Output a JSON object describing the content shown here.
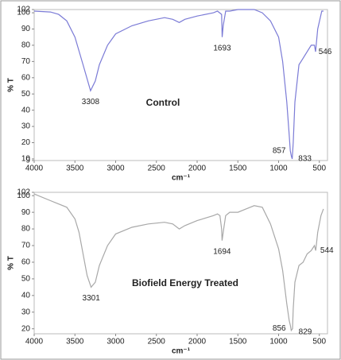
{
  "chart_data": [
    {
      "type": "line",
      "title": "Control",
      "x_label": "cm⁻¹",
      "y_label": "% T",
      "color": "#7b7bd6",
      "x": [
        4000,
        3800,
        3700,
        3600,
        3500,
        3400,
        3308,
        3250,
        3200,
        3100,
        3000,
        2800,
        2600,
        2400,
        2300,
        2220,
        2150,
        2000,
        1800,
        1750,
        1700,
        1693,
        1680,
        1650,
        1600,
        1500,
        1400,
        1300,
        1200,
        1100,
        1000,
        950,
        900,
        870,
        857,
        845,
        833,
        820,
        800,
        750,
        700,
        650,
        600,
        560,
        546,
        520,
        470,
        450
      ],
      "values": [
        101,
        100.5,
        99,
        95,
        85,
        68,
        52,
        58,
        68,
        80,
        87,
        92,
        95,
        97,
        96,
        94,
        96,
        98,
        100,
        101,
        99,
        85,
        92,
        101,
        101,
        102,
        102,
        102,
        100,
        95,
        85,
        70,
        45,
        25,
        15,
        12,
        10,
        20,
        45,
        68,
        72,
        76,
        80,
        80,
        76,
        90,
        101,
        101
      ],
      "peaks": [
        3308,
        1693,
        857,
        833,
        546
      ],
      "xlim": [
        4000,
        400
      ],
      "xticks": [
        4000,
        3500,
        3000,
        2500,
        2000,
        1500,
        1000,
        500
      ],
      "ylim": [
        9,
        102
      ],
      "yticks": [
        9,
        10,
        20,
        30,
        40,
        50,
        60,
        70,
        80,
        90,
        100,
        102
      ]
    },
    {
      "type": "line",
      "title": "Biofield Energy Treated",
      "x_label": "cm⁻¹",
      "y_label": "% T",
      "color": "#a8a8a8",
      "x": [
        4000,
        3800,
        3600,
        3500,
        3450,
        3400,
        3350,
        3301,
        3250,
        3200,
        3100,
        3000,
        2800,
        2600,
        2400,
        2300,
        2220,
        2150,
        2000,
        1800,
        1750,
        1720,
        1700,
        1694,
        1680,
        1650,
        1600,
        1500,
        1400,
        1300,
        1200,
        1100,
        1000,
        950,
        900,
        870,
        856,
        845,
        829,
        820,
        800,
        750,
        700,
        650,
        600,
        560,
        544,
        520,
        480,
        450
      ],
      "values": [
        101,
        97,
        93,
        86,
        78,
        65,
        52,
        45,
        48,
        58,
        70,
        77,
        81,
        83,
        84,
        83,
        80,
        82,
        85,
        88,
        89,
        88,
        80,
        73,
        78,
        88,
        90,
        90,
        92,
        94,
        93,
        83,
        68,
        55,
        35,
        25,
        22,
        19,
        20,
        32,
        48,
        58,
        60,
        65,
        67,
        70,
        67,
        78,
        88,
        92
      ],
      "peaks": [
        3301,
        1694,
        856,
        829,
        544
      ],
      "xlim": [
        4000,
        400
      ],
      "xticks": [
        4000,
        3500,
        3000,
        2500,
        2000,
        1500,
        1000,
        500
      ],
      "ylim": [
        17,
        102
      ],
      "yticks": [
        20,
        30,
        40,
        50,
        60,
        70,
        80,
        90,
        100,
        102
      ]
    }
  ]
}
